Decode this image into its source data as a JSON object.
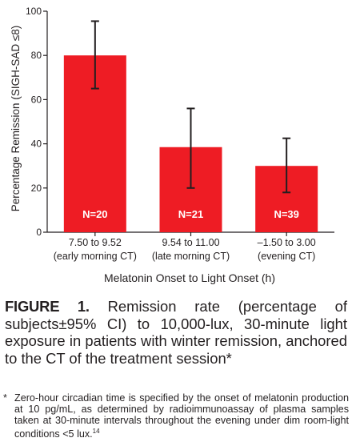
{
  "chart_data": {
    "type": "bar",
    "categories": [
      {
        "line1": "7.50 to 9.52",
        "line2": "(early morning CT)"
      },
      {
        "line1": "9.54 to 11.00",
        "line2": "(late morning CT)"
      },
      {
        "line1": "–1.50 to 3.00",
        "line2": "(evening CT)"
      }
    ],
    "values": [
      80,
      38.5,
      30
    ],
    "error_low": [
      65,
      20,
      18
    ],
    "error_high": [
      95.5,
      56,
      42.5
    ],
    "bar_labels": [
      "N=20",
      "N=21",
      "N=39"
    ],
    "xlabel": "Melatonin Onset to Light Onset (h)",
    "ylabel": "Percentage Remission (SIGH-SAD ≤8)",
    "ylim": [
      0,
      100
    ],
    "yticks": [
      0,
      20,
      40,
      60,
      80,
      100
    ],
    "bar_color": "#ee1c24",
    "grid": false,
    "legend": "none"
  },
  "caption": {
    "label": "FIGURE 1.",
    "text": "Remission rate (percentage of subjects±95% CI) to 10,000-lux, 30-minute light exposure in patients with winter remission, anchored to the CT of the treatment session*"
  },
  "footnote": {
    "mark": "*",
    "text": "Zero-hour circadian time is specified by the onset of melatonin production at 10 pg/mL, as determined by radioimmunoassay of plasma samples taken at 30-minute intervals throughout the evening under dim room-light conditions <5 lux.",
    "ref": "14"
  }
}
